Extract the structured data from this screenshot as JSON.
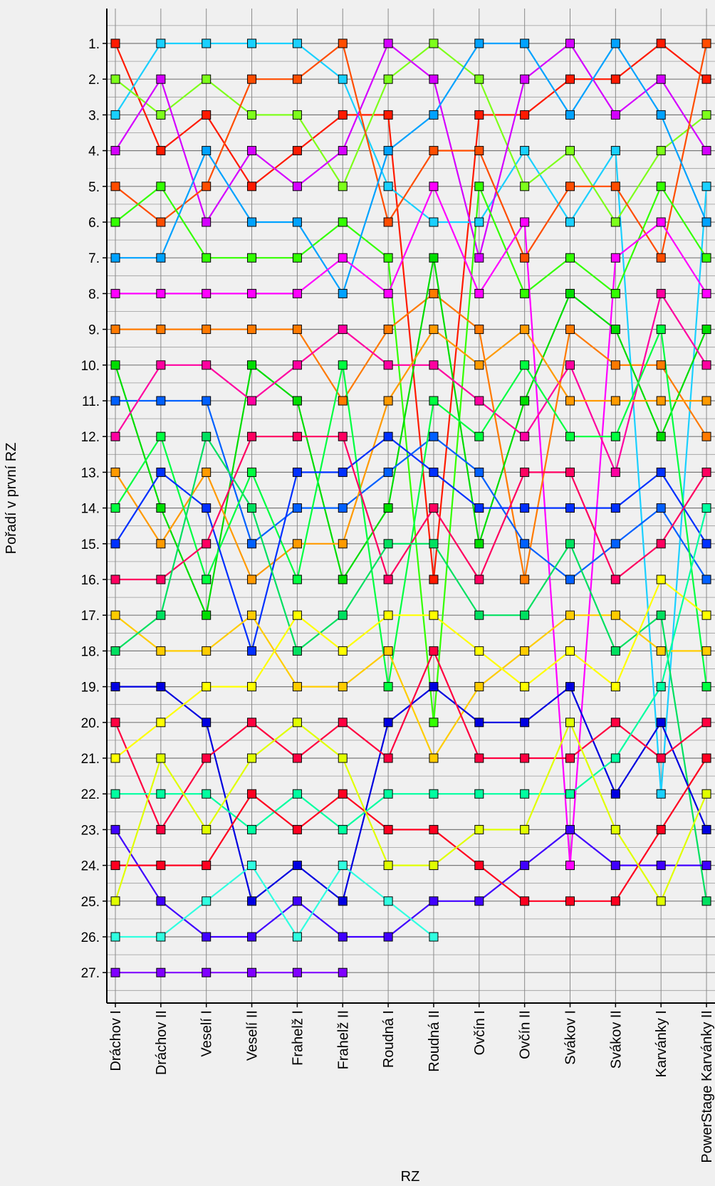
{
  "chart_data": {
    "type": "line",
    "title": "",
    "xlabel": "RZ",
    "ylabel": "Pořadí v první RZ",
    "categories": [
      "Dráchov I",
      "Dráchov II",
      "Veselí I",
      "Veselí II",
      "Frahelž I",
      "Frahelž II",
      "Roudná I",
      "Roudná II",
      "Ovčín I",
      "Ovčín II",
      "Svákov I",
      "Svákov II",
      "Karvánky I",
      "PowerStage Karvánky II"
    ],
    "y_tick_labels": [
      "1.",
      "2.",
      "3.",
      "4.",
      "5.",
      "6.",
      "7.",
      "8.",
      "9.",
      "10.",
      "11.",
      "12.",
      "13.",
      "14.",
      "15.",
      "16.",
      "17.",
      "18.",
      "19.",
      "20.",
      "21.",
      "22.",
      "23.",
      "24.",
      "25.",
      "26.",
      "27."
    ],
    "ylim": [
      0.0,
      28.5
    ],
    "y_inverted": true,
    "grid": true,
    "legend": "none",
    "series": [
      {
        "color": "#ff1a00",
        "values": [
          1,
          4,
          3,
          5,
          4,
          3,
          3,
          16,
          3,
          3,
          2,
          2,
          1,
          2
        ]
      },
      {
        "color": "#1ad0ff",
        "values": [
          3,
          1,
          1,
          1,
          1,
          2,
          5,
          6,
          6,
          4,
          6,
          4,
          22,
          5
        ]
      },
      {
        "color": "#7dff1a",
        "values": [
          2,
          3,
          2,
          3,
          3,
          5,
          2,
          1,
          2,
          5,
          4,
          6,
          4,
          3
        ]
      },
      {
        "color": "#d400ff",
        "values": [
          4,
          2,
          6,
          4,
          5,
          4,
          1,
          2,
          7,
          2,
          1,
          3,
          2,
          4
        ]
      },
      {
        "color": "#ff4d00",
        "values": [
          5,
          6,
          5,
          2,
          2,
          1,
          6,
          4,
          4,
          7,
          5,
          5,
          7,
          1
        ]
      },
      {
        "color": "#33ff00",
        "values": [
          6,
          5,
          7,
          7,
          7,
          6,
          7,
          20,
          5,
          8,
          7,
          8,
          5,
          7
        ]
      },
      {
        "color": "#00a2ff",
        "values": [
          7,
          7,
          4,
          6,
          6,
          8,
          4,
          3,
          1,
          1,
          3,
          1,
          3,
          6
        ]
      },
      {
        "color": "#ff00ff",
        "values": [
          8,
          8,
          8,
          8,
          8,
          7,
          8,
          5,
          8,
          6,
          24,
          7,
          6,
          8
        ]
      },
      {
        "color": "#ff7a00",
        "values": [
          9,
          9,
          9,
          9,
          9,
          11,
          9,
          8,
          9,
          16,
          9,
          10,
          10,
          12
        ]
      },
      {
        "color": "#00dd00",
        "values": [
          10,
          14,
          17,
          10,
          11,
          16,
          14,
          7,
          15,
          11,
          8,
          9,
          12,
          9
        ]
      },
      {
        "color": "#0060ff",
        "values": [
          11,
          11,
          11,
          15,
          14,
          14,
          13,
          12,
          13,
          15,
          16,
          15,
          14,
          16
        ]
      },
      {
        "color": "#ff00a0",
        "values": [
          12,
          10,
          10,
          11,
          10,
          9,
          10,
          10,
          11,
          12,
          10,
          13,
          8,
          10
        ]
      },
      {
        "color": "#ff9a00",
        "values": [
          13,
          15,
          13,
          16,
          15,
          15,
          11,
          9,
          10,
          9,
          11,
          11,
          11,
          11
        ]
      },
      {
        "color": "#00ff40",
        "values": [
          14,
          12,
          16,
          13,
          16,
          10,
          19,
          11,
          12,
          10,
          12,
          12,
          9,
          19
        ]
      },
      {
        "color": "#0030ff",
        "values": [
          15,
          13,
          14,
          18,
          13,
          13,
          12,
          13,
          14,
          14,
          14,
          14,
          13,
          15
        ]
      },
      {
        "color": "#ff0060",
        "values": [
          16,
          16,
          15,
          12,
          12,
          12,
          16,
          14,
          16,
          13,
          13,
          16,
          15,
          13
        ]
      },
      {
        "color": "#ffcc00",
        "values": [
          17,
          18,
          18,
          17,
          19,
          19,
          18,
          21,
          19,
          18,
          17,
          17,
          18,
          18
        ]
      },
      {
        "color": "#00e060",
        "values": [
          18,
          17,
          12,
          14,
          18,
          17,
          15,
          15,
          17,
          17,
          15,
          18,
          17,
          25
        ]
      },
      {
        "color": "#0000e0",
        "values": [
          19,
          19,
          20,
          25,
          24,
          25,
          20,
          19,
          20,
          20,
          19,
          22,
          20,
          23
        ]
      },
      {
        "color": "#ff0040",
        "values": [
          20,
          23,
          21,
          20,
          21,
          20,
          21,
          18,
          21,
          21,
          21,
          20,
          21,
          20
        ]
      },
      {
        "color": "#ffff00",
        "values": [
          21,
          20,
          19,
          19,
          17,
          18,
          17,
          17,
          18,
          19,
          18,
          19,
          16,
          17
        ]
      },
      {
        "color": "#00ffa0",
        "values": [
          22,
          22,
          22,
          23,
          22,
          23,
          22,
          22,
          22,
          22,
          22,
          21,
          19,
          14
        ]
      },
      {
        "color": "#4000ff",
        "values": [
          23,
          25,
          26,
          26,
          25,
          26,
          26,
          25,
          25,
          24,
          23,
          24,
          24,
          24
        ]
      },
      {
        "color": "#ff0020",
        "values": [
          24,
          24,
          24,
          22,
          23,
          22,
          23,
          23,
          24,
          25,
          25,
          25,
          23,
          21
        ]
      },
      {
        "color": "#e0ff00",
        "values": [
          25,
          21,
          23,
          21,
          20,
          21,
          24,
          24,
          23,
          23,
          20,
          23,
          25,
          22
        ]
      },
      {
        "color": "#30ffe0",
        "values": [
          26,
          26,
          25,
          24,
          26,
          24,
          25,
          26,
          null,
          null,
          null,
          null,
          null,
          null
        ]
      },
      {
        "color": "#8000ff",
        "values": [
          27,
          27,
          27,
          27,
          27,
          27,
          null,
          null,
          null,
          null,
          null,
          null,
          null,
          null
        ]
      }
    ]
  }
}
